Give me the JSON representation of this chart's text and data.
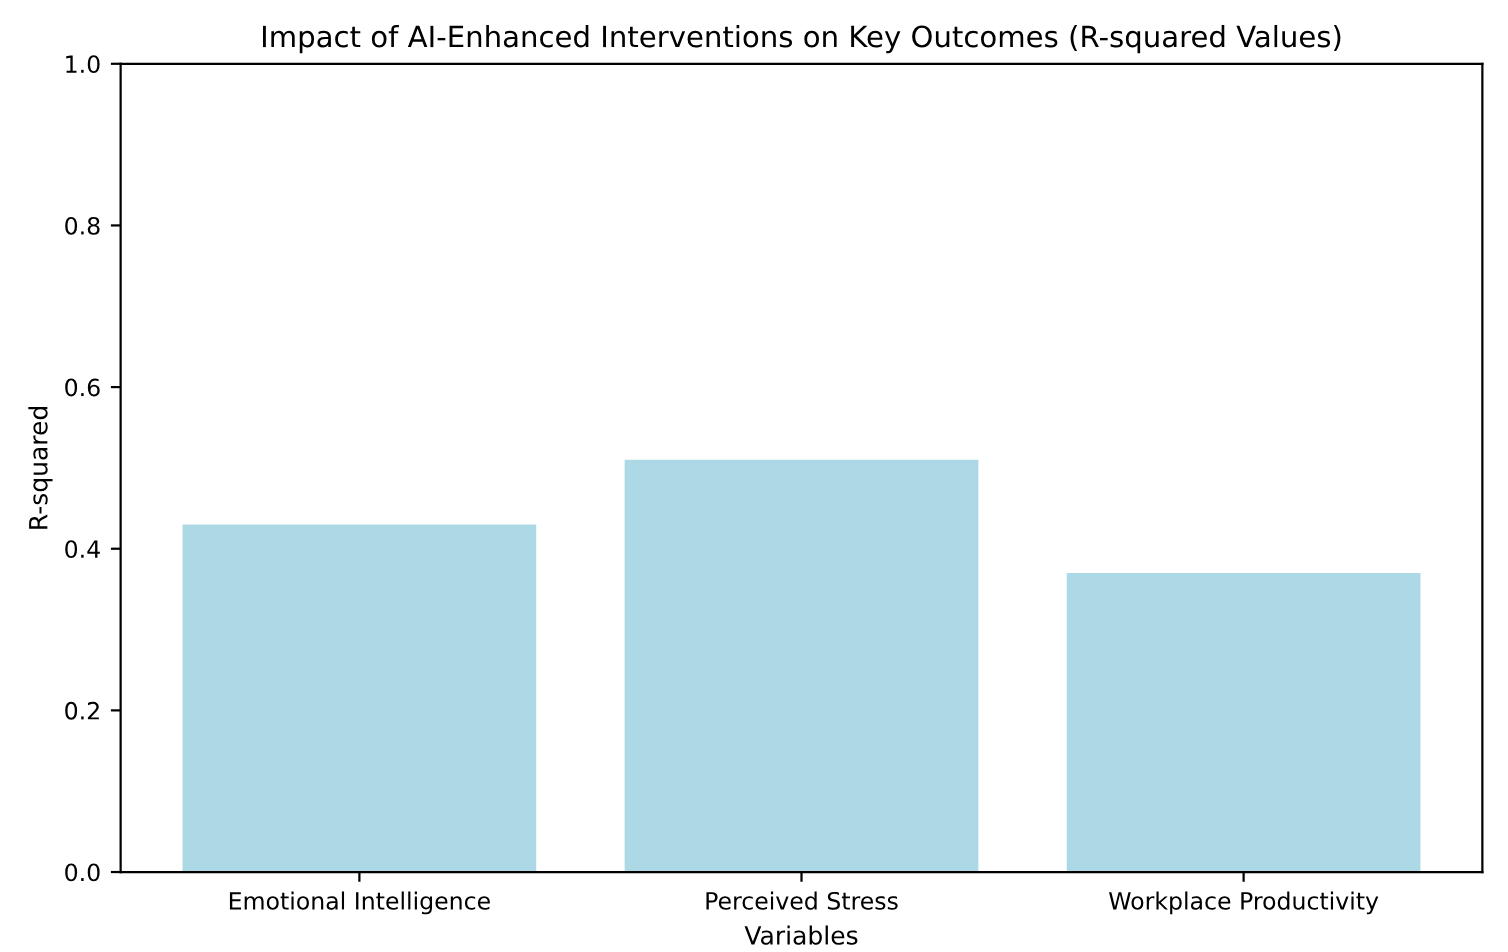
{
  "chart_data": {
    "type": "bar",
    "title": "Impact of AI-Enhanced Interventions on Key Outcomes (R-squared Values)",
    "xlabel": "Variables",
    "ylabel": "R-squared",
    "categories": [
      "Emotional Intelligence",
      "Perceived Stress",
      "Workplace Productivity"
    ],
    "values": [
      0.43,
      0.51,
      0.37
    ],
    "color": "#add8e6",
    "ylim": [
      0,
      1.0
    ],
    "yticks": [
      {
        "value": 0,
        "label": "0.0"
      },
      0.2,
      0.4,
      0.6,
      0.8,
      {
        "value": 1,
        "label": "1.0"
      }
    ],
    "grid": false,
    "legend": false
  }
}
